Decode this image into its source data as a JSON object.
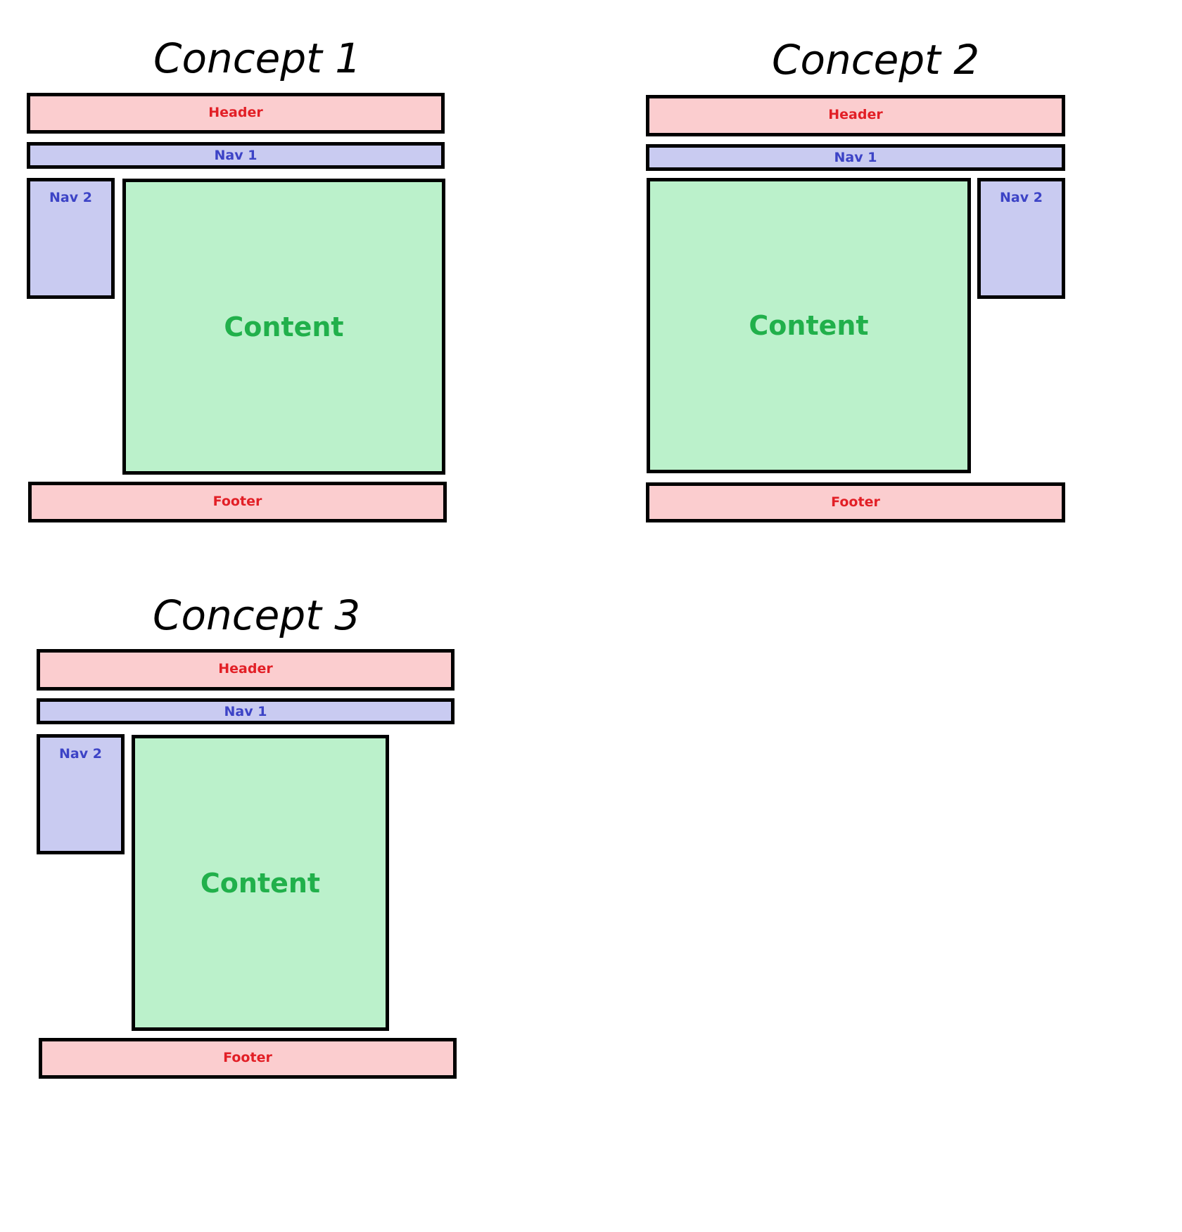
{
  "concepts": [
    {
      "title": "Concept 1",
      "header": "Header",
      "nav1": "Nav 1",
      "nav2": "Nav 2",
      "content": "Content",
      "footer": "Footer",
      "nav2_position": "left"
    },
    {
      "title": "Concept 2",
      "header": "Header",
      "nav1": "Nav 1",
      "nav2": "Nav 2",
      "content": "Content",
      "footer": "Footer",
      "nav2_position": "right"
    },
    {
      "title": "Concept 3",
      "header": "Header",
      "nav1": "Nav 1",
      "nav2": "Nav 2",
      "content": "Content",
      "footer": "Footer",
      "nav2_position": "left"
    }
  ],
  "colors": {
    "header_footer_fill": "#fbcdcf",
    "header_footer_text": "#e21f26",
    "nav_fill": "#c9cbf1",
    "nav_text": "#3c43c6",
    "content_fill": "#bbf1cb",
    "content_text": "#21b04b",
    "border": "#000000"
  }
}
